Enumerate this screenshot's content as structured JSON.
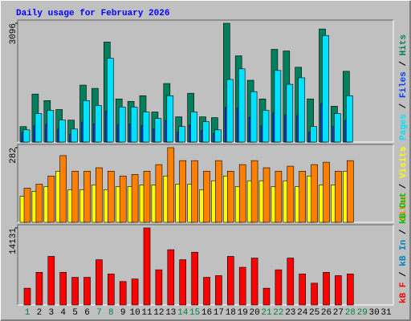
{
  "chart_data": [
    {
      "type": "bar",
      "title": "Daily usage for February 2026",
      "title_color": "#0000ff",
      "categories": [
        "1",
        "2",
        "3",
        "4",
        "5",
        "6",
        "7",
        "8",
        "9",
        "10",
        "11",
        "12",
        "13",
        "14",
        "15",
        "16",
        "17",
        "18",
        "19",
        "20",
        "21",
        "22",
        "23",
        "24",
        "25",
        "26",
        "27",
        "28",
        "29",
        "30",
        "31"
      ],
      "label_colors": [
        "#008040",
        "#000000",
        "#000000",
        "#000000",
        "#000000",
        "#000000",
        "#008040",
        "#008040",
        "#000000",
        "#000000",
        "#000000",
        "#000000",
        "#000000",
        "#008040",
        "#008040",
        "#000000",
        "#000000",
        "#000000",
        "#000000",
        "#000000",
        "#008040",
        "#008040",
        "#000000",
        "#000000",
        "#000000",
        "#000000",
        "#000000",
        "#008040",
        "#008040",
        "#000000",
        "#000000"
      ],
      "ylim": [
        0,
        3096
      ],
      "yticks": [
        3096
      ],
      "legend_separator": " / ",
      "series": [
        {
          "name": "Hits",
          "color": "#00805c",
          "values": [
            403,
            1251,
            1081,
            848,
            572,
            1484,
            1399,
            2608,
            1124,
            1060,
            1208,
            784,
            1526,
            657,
            1272,
            657,
            636,
            3096,
            2247,
            1611,
            1124,
            2417,
            2374,
            1950,
            1124,
            2947,
            933,
            1844,
            null,
            null,
            null
          ]
        },
        {
          "name": "Files",
          "color": "#0040ff",
          "values": [
            250,
            420,
            460,
            330,
            200,
            520,
            480,
            800,
            450,
            470,
            430,
            350,
            560,
            260,
            440,
            300,
            220,
            900,
            880,
            640,
            420,
            760,
            700,
            690,
            250,
            1000,
            400,
            560,
            null,
            null,
            null
          ]
        },
        {
          "name": "Pages",
          "color": "#00e0ff",
          "values": [
            318,
            742,
            827,
            572,
            339,
            1081,
            954,
            2184,
            912,
            912,
            784,
            615,
            1208,
            403,
            784,
            530,
            318,
            1632,
            1908,
            1314,
            827,
            1866,
            1505,
            1675,
            403,
            2777,
            742,
            1208,
            null,
            null,
            null
          ]
        }
      ]
    },
    {
      "type": "bar",
      "ylim": [
        0,
        282
      ],
      "yticks": [
        282
      ],
      "legend_separator": " / ",
      "series": [
        {
          "name": "Visits",
          "color": "#ffff00",
          "values": [
            98,
            117,
            135,
            193,
            123,
            123,
            141,
            123,
            135,
            135,
            141,
            141,
            175,
            144,
            144,
            123,
            157,
            175,
            135,
            157,
            157,
            135,
            157,
            135,
            175,
            141,
            141,
            193,
            null,
            null,
            null
          ]
        },
        {
          "name": "Sites",
          "color": "#ff8000",
          "values": [
            129,
            144,
            175,
            252,
            193,
            193,
            206,
            193,
            175,
            181,
            193,
            218,
            282,
            233,
            233,
            193,
            233,
            193,
            218,
            233,
            206,
            193,
            212,
            193,
            218,
            227,
            193,
            233,
            null,
            null,
            null
          ]
        }
      ]
    },
    {
      "type": "bar",
      "ylim": [
        0,
        14131
      ],
      "yticks": [
        14131
      ],
      "legend_separator": " / ",
      "series": [
        {
          "name": "kB F",
          "color": "#ff0000",
          "values": [
            3072,
            5990,
            8909,
            5990,
            5069,
            5069,
            8295,
            5683,
            4301,
            4762,
            14131,
            6451,
            10138,
            8295,
            9677,
            5069,
            5376,
            8909,
            6912,
            8602,
            3072,
            6451,
            8602,
            5683,
            3994,
            5990,
            5376,
            5683,
            null,
            null,
            null
          ]
        }
      ],
      "legend_extra": [
        {
          "text": "kB In",
          "color": "#0080c0"
        },
        {
          "text": "kB Out",
          "color": "#00c000"
        }
      ]
    }
  ]
}
